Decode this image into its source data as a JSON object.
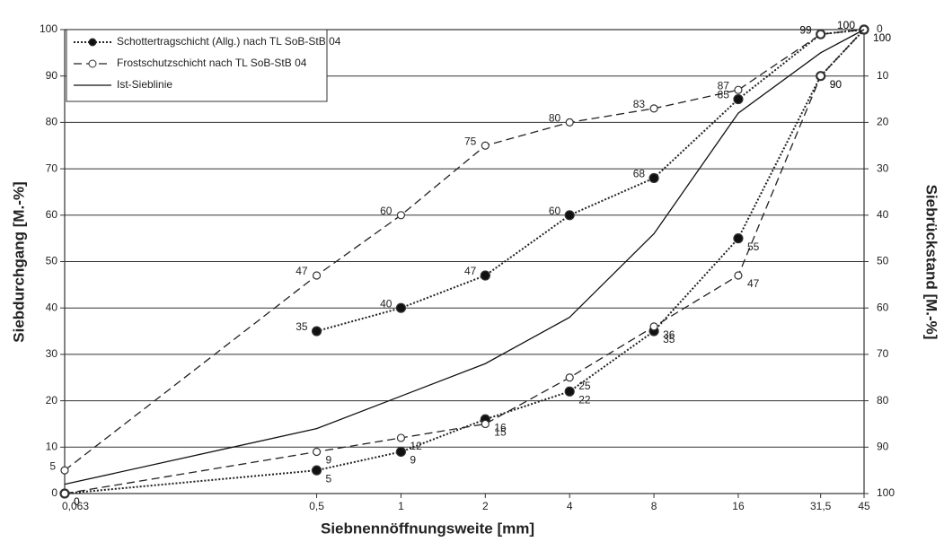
{
  "chart_data": {
    "type": "line",
    "x_label": "Siebnennöffnungsweite [mm]",
    "y_label": "Siebdurchgang [M.-%]",
    "y2_label": "Siebrückstand [M.-%]",
    "xscale": "log",
    "x": [
      0.063,
      0.5,
      1,
      2,
      4,
      8,
      16,
      31.5,
      45
    ],
    "xlim": [
      0.063,
      45
    ],
    "xticks": [
      {
        "value": 0.063,
        "label": "0,063"
      },
      {
        "value": 0.5,
        "label": "0,5"
      },
      1,
      2,
      4,
      8,
      16,
      {
        "value": 31.5,
        "label": "31,5"
      },
      45
    ],
    "ylim": [
      0,
      100
    ],
    "yticks": [
      0,
      10,
      20,
      30,
      40,
      50,
      60,
      70,
      80,
      90,
      100
    ],
    "y2lim": [
      100,
      0
    ],
    "y2ticks": [
      0,
      10,
      20,
      30,
      40,
      50,
      60,
      70,
      80,
      90,
      100
    ],
    "grid": true,
    "legend": "upper left",
    "series": [
      {
        "name": "Schottertragschicht (Allg.) nach TL SoB-StB 04",
        "color": "#222222",
        "line_style": "dotted",
        "marker": "filled",
        "curves": [
          [
            null,
            35,
            40,
            47,
            60,
            68,
            85,
            99,
            100
          ],
          [
            0,
            5,
            9,
            16,
            22,
            35,
            55,
            90,
            100
          ]
        ]
      },
      {
        "name": "Frostschutzschicht nach TL SoB-StB 04",
        "color": "#222222",
        "line_style": "dashed",
        "marker": "open",
        "curves": [
          [
            5,
            47,
            60,
            75,
            80,
            83,
            87,
            99,
            100
          ],
          [
            0,
            9,
            12,
            15,
            25,
            36,
            47,
            90,
            100
          ]
        ]
      },
      {
        "name": "Ist-Sieblinie",
        "color": "#111111",
        "line_style": "solid",
        "marker": "none",
        "curves": [
          [
            2,
            14,
            21,
            28,
            38,
            56,
            82,
            95,
            100
          ]
        ]
      }
    ]
  }
}
